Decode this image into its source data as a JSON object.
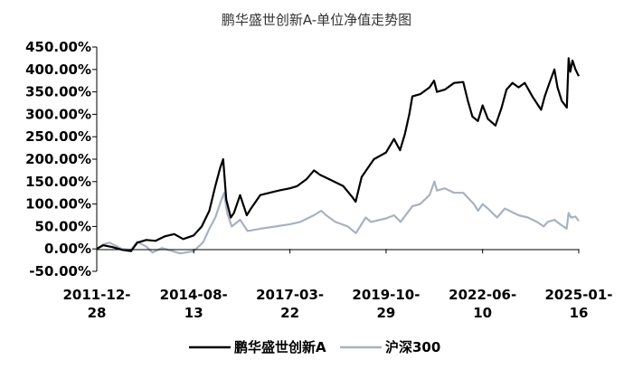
{
  "chart_data": {
    "type": "line",
    "title": "鹏华盛世创新A-单位净值走势图",
    "xlabel": "",
    "ylabel": "",
    "ylim": [
      -50,
      450
    ],
    "yticks": [
      -50,
      0,
      50,
      100,
      150,
      200,
      250,
      300,
      350,
      400,
      450
    ],
    "ytick_labels": [
      "-50.00%",
      "0.00%",
      "50.00%",
      "100.00%",
      "150.00%",
      "200.00%",
      "250.00%",
      "300.00%",
      "350.00%",
      "400.00%",
      "450.00%"
    ],
    "xlim": [
      "2011-12-28",
      "2025-01-16"
    ],
    "xticks": [
      "2011-12-28",
      "2014-08-13",
      "2017-03-22",
      "2019-10-29",
      "2022-06-10",
      "2025-01-16"
    ],
    "xtick_labels": [
      [
        "2011-12-",
        "28"
      ],
      [
        "2014-08-",
        "13"
      ],
      [
        "2017-03-",
        "22"
      ],
      [
        "2019-10-",
        "29"
      ],
      [
        "2022-06-",
        "10"
      ],
      [
        "2025-01-",
        "16"
      ]
    ],
    "legend_position": "bottom",
    "grid": false,
    "series": [
      {
        "name": "鹏华盛世创新A",
        "color": "#000000",
        "points": [
          [
            "2011-12-28",
            0
          ],
          [
            "2012-03-01",
            8
          ],
          [
            "2012-06-01",
            4
          ],
          [
            "2012-09-01",
            -2
          ],
          [
            "2012-12-01",
            -5
          ],
          [
            "2013-02-01",
            14
          ],
          [
            "2013-05-01",
            20
          ],
          [
            "2013-08-01",
            18
          ],
          [
            "2013-11-01",
            28
          ],
          [
            "2014-02-01",
            33
          ],
          [
            "2014-05-01",
            22
          ],
          [
            "2014-08-13",
            30
          ],
          [
            "2014-11-01",
            50
          ],
          [
            "2015-01-15",
            85
          ],
          [
            "2015-03-15",
            140
          ],
          [
            "2015-05-01",
            180
          ],
          [
            "2015-06-01",
            200
          ],
          [
            "2015-07-01",
            110
          ],
          [
            "2015-08-15",
            70
          ],
          [
            "2015-09-15",
            80
          ],
          [
            "2015-11-15",
            120
          ],
          [
            "2016-01-20",
            75
          ],
          [
            "2016-03-01",
            90
          ],
          [
            "2016-06-01",
            120
          ],
          [
            "2016-09-01",
            125
          ],
          [
            "2016-12-01",
            130
          ],
          [
            "2017-03-22",
            135
          ],
          [
            "2017-06-01",
            140
          ],
          [
            "2017-09-01",
            155
          ],
          [
            "2017-11-15",
            175
          ],
          [
            "2018-01-15",
            165
          ],
          [
            "2018-03-01",
            160
          ],
          [
            "2018-06-01",
            150
          ],
          [
            "2018-09-01",
            140
          ],
          [
            "2018-12-01",
            115
          ],
          [
            "2019-01-01",
            105
          ],
          [
            "2019-03-01",
            160
          ],
          [
            "2019-05-01",
            180
          ],
          [
            "2019-07-01",
            200
          ],
          [
            "2019-10-29",
            215
          ],
          [
            "2020-01-15",
            245
          ],
          [
            "2020-03-15",
            220
          ],
          [
            "2020-05-01",
            255
          ],
          [
            "2020-06-15",
            300
          ],
          [
            "2020-07-15",
            340
          ],
          [
            "2020-10-01",
            345
          ],
          [
            "2021-01-01",
            360
          ],
          [
            "2021-02-15",
            375
          ],
          [
            "2021-03-15",
            350
          ],
          [
            "2021-06-01",
            355
          ],
          [
            "2021-09-01",
            370
          ],
          [
            "2021-12-01",
            372
          ],
          [
            "2022-01-15",
            330
          ],
          [
            "2022-03-01",
            295
          ],
          [
            "2022-04-25",
            285
          ],
          [
            "2022-06-10",
            320
          ],
          [
            "2022-08-01",
            290
          ],
          [
            "2022-10-15",
            275
          ],
          [
            "2022-12-15",
            315
          ],
          [
            "2023-02-01",
            355
          ],
          [
            "2023-04-01",
            370
          ],
          [
            "2023-06-01",
            360
          ],
          [
            "2023-08-01",
            370
          ],
          [
            "2023-10-15",
            340
          ],
          [
            "2024-01-10",
            310
          ],
          [
            "2024-02-15",
            340
          ],
          [
            "2024-04-01",
            370
          ],
          [
            "2024-05-20",
            400
          ],
          [
            "2024-06-20",
            360
          ],
          [
            "2024-08-01",
            330
          ],
          [
            "2024-09-20",
            315
          ],
          [
            "2024-10-08",
            425
          ],
          [
            "2024-10-25",
            395
          ],
          [
            "2024-11-15",
            420
          ],
          [
            "2024-12-15",
            400
          ],
          [
            "2025-01-16",
            385
          ]
        ]
      },
      {
        "name": "沪深300",
        "color": "#a8b2c0",
        "points": [
          [
            "2011-12-28",
            0
          ],
          [
            "2012-03-01",
            10
          ],
          [
            "2012-05-01",
            14
          ],
          [
            "2012-09-01",
            0
          ],
          [
            "2012-12-01",
            -2
          ],
          [
            "2013-02-01",
            16
          ],
          [
            "2013-05-01",
            5
          ],
          [
            "2013-07-01",
            -8
          ],
          [
            "2013-10-01",
            2
          ],
          [
            "2014-01-01",
            -4
          ],
          [
            "2014-04-01",
            -10
          ],
          [
            "2014-08-13",
            -5
          ],
          [
            "2014-11-15",
            15
          ],
          [
            "2015-01-15",
            45
          ],
          [
            "2015-03-15",
            70
          ],
          [
            "2015-05-15",
            110
          ],
          [
            "2015-06-10",
            125
          ],
          [
            "2015-07-10",
            80
          ],
          [
            "2015-08-25",
            50
          ],
          [
            "2015-11-15",
            65
          ],
          [
            "2016-01-28",
            40
          ],
          [
            "2016-06-01",
            45
          ],
          [
            "2016-11-01",
            50
          ],
          [
            "2017-03-22",
            55
          ],
          [
            "2017-07-01",
            60
          ],
          [
            "2017-11-15",
            75
          ],
          [
            "2018-01-26",
            85
          ],
          [
            "2018-03-15",
            75
          ],
          [
            "2018-06-15",
            60
          ],
          [
            "2018-10-15",
            50
          ],
          [
            "2019-01-04",
            35
          ],
          [
            "2019-04-10",
            70
          ],
          [
            "2019-06-01",
            60
          ],
          [
            "2019-10-29",
            68
          ],
          [
            "2020-01-15",
            75
          ],
          [
            "2020-03-20",
            60
          ],
          [
            "2020-07-15",
            95
          ],
          [
            "2020-10-01",
            100
          ],
          [
            "2021-01-01",
            120
          ],
          [
            "2021-02-18",
            150
          ],
          [
            "2021-03-15",
            130
          ],
          [
            "2021-06-01",
            135
          ],
          [
            "2021-09-01",
            125
          ],
          [
            "2021-12-01",
            125
          ],
          [
            "2022-03-15",
            100
          ],
          [
            "2022-04-26",
            85
          ],
          [
            "2022-06-10",
            100
          ],
          [
            "2022-08-01",
            90
          ],
          [
            "2022-10-31",
            70
          ],
          [
            "2023-01-15",
            90
          ],
          [
            "2023-03-01",
            85
          ],
          [
            "2023-06-01",
            75
          ],
          [
            "2023-09-01",
            70
          ],
          [
            "2023-12-01",
            60
          ],
          [
            "2024-02-05",
            50
          ],
          [
            "2024-03-15",
            60
          ],
          [
            "2024-05-20",
            65
          ],
          [
            "2024-07-15",
            55
          ],
          [
            "2024-09-18",
            45
          ],
          [
            "2024-10-08",
            80
          ],
          [
            "2024-11-01",
            70
          ],
          [
            "2024-12-15",
            72
          ],
          [
            "2025-01-16",
            62
          ]
        ]
      }
    ]
  }
}
